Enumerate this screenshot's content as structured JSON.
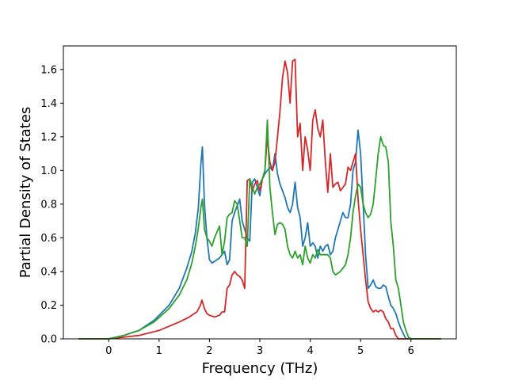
{
  "chart_data": {
    "type": "line",
    "title": "",
    "xlabel": "Frequency (THz)",
    "ylabel": "Partial Density of States",
    "xlim": [
      -0.9,
      6.9
    ],
    "ylim": [
      0.0,
      1.74
    ],
    "xticks": [
      0,
      1,
      2,
      3,
      4,
      5,
      6
    ],
    "yticks": [
      0.0,
      0.2,
      0.4,
      0.6,
      0.8,
      1.0,
      1.2,
      1.4,
      1.6
    ],
    "ytick_labels": [
      "0.0",
      "0.2",
      "0.4",
      "0.6",
      "0.8",
      "1.0",
      "1.2",
      "1.4",
      "1.6"
    ],
    "grid": false,
    "legend": "none",
    "series": [
      {
        "color": "#1f77b4",
        "x": [
          -0.6,
          0.0,
          0.3,
          0.6,
          0.9,
          1.2,
          1.4,
          1.55,
          1.65,
          1.72,
          1.78,
          1.83,
          1.86,
          1.9,
          1.95,
          2.0,
          2.05,
          2.1,
          2.2,
          2.3,
          2.35,
          2.4,
          2.45,
          2.5,
          2.55,
          2.6,
          2.65,
          2.7,
          2.75,
          2.8,
          2.85,
          2.9,
          3.0,
          3.05,
          3.1,
          3.15,
          3.2,
          3.25,
          3.3,
          3.35,
          3.4,
          3.45,
          3.5,
          3.55,
          3.6,
          3.65,
          3.7,
          3.75,
          3.8,
          3.85,
          3.9,
          3.95,
          4.0,
          4.05,
          4.1,
          4.15,
          4.2,
          4.25,
          4.3,
          4.35,
          4.4,
          4.45,
          4.5,
          4.55,
          4.6,
          4.65,
          4.7,
          4.75,
          4.8,
          4.85,
          4.9,
          4.95,
          5.0,
          5.05,
          5.1,
          5.15,
          5.2,
          5.25,
          5.3,
          5.35,
          5.4,
          5.45,
          5.5,
          5.55,
          5.6,
          5.65,
          5.7,
          5.75,
          5.8,
          5.85,
          5.9,
          5.95,
          6.0,
          6.6
        ],
        "y": [
          0.0,
          0.0,
          0.02,
          0.05,
          0.11,
          0.2,
          0.3,
          0.42,
          0.52,
          0.63,
          0.78,
          1.04,
          1.14,
          0.8,
          0.6,
          0.47,
          0.45,
          0.46,
          0.48,
          0.52,
          0.44,
          0.47,
          0.7,
          0.75,
          0.79,
          0.83,
          0.7,
          0.65,
          0.6,
          0.58,
          0.93,
          0.95,
          0.85,
          0.95,
          0.98,
          1.0,
          1.02,
          1.0,
          1.1,
          0.98,
          0.92,
          0.88,
          0.84,
          0.78,
          0.75,
          0.8,
          0.93,
          0.78,
          0.72,
          0.55,
          0.6,
          0.69,
          0.55,
          0.57,
          0.55,
          0.48,
          0.55,
          0.52,
          0.55,
          0.56,
          0.5,
          0.52,
          0.6,
          0.65,
          0.7,
          0.75,
          0.72,
          0.72,
          0.8,
          1.0,
          1.05,
          1.24,
          1.1,
          0.8,
          0.5,
          0.3,
          0.32,
          0.35,
          0.31,
          0.3,
          0.3,
          0.32,
          0.31,
          0.25,
          0.2,
          0.18,
          0.15,
          0.1,
          0.06,
          0.03,
          0.0,
          0.0,
          0.0,
          0.0
        ]
      },
      {
        "color": "#d62728",
        "x": [
          -0.6,
          0.0,
          0.3,
          0.6,
          1.0,
          1.4,
          1.6,
          1.75,
          1.82,
          1.85,
          1.9,
          1.95,
          2.0,
          2.1,
          2.2,
          2.25,
          2.3,
          2.35,
          2.4,
          2.45,
          2.5,
          2.55,
          2.6,
          2.65,
          2.7,
          2.75,
          2.8,
          2.85,
          2.9,
          2.95,
          3.0,
          3.05,
          3.1,
          3.15,
          3.2,
          3.25,
          3.3,
          3.35,
          3.4,
          3.45,
          3.5,
          3.55,
          3.6,
          3.65,
          3.7,
          3.75,
          3.8,
          3.85,
          3.9,
          3.95,
          4.0,
          4.05,
          4.1,
          4.15,
          4.2,
          4.25,
          4.3,
          4.35,
          4.4,
          4.45,
          4.5,
          4.55,
          4.6,
          4.65,
          4.7,
          4.75,
          4.8,
          4.85,
          4.9,
          4.95,
          5.0,
          5.05,
          5.1,
          5.15,
          5.2,
          5.25,
          5.3,
          5.35,
          5.4,
          5.45,
          5.5,
          5.55,
          5.6,
          5.65,
          5.7,
          5.75,
          5.8,
          5.85,
          5.9,
          5.95,
          6.0,
          6.6
        ],
        "y": [
          0.0,
          0.0,
          0.01,
          0.02,
          0.05,
          0.1,
          0.13,
          0.16,
          0.2,
          0.23,
          0.18,
          0.15,
          0.14,
          0.13,
          0.14,
          0.16,
          0.16,
          0.3,
          0.32,
          0.38,
          0.4,
          0.38,
          0.37,
          0.35,
          0.3,
          0.94,
          0.95,
          0.88,
          0.92,
          0.94,
          0.88,
          0.95,
          1.0,
          1.2,
          1.05,
          1.0,
          1.05,
          1.2,
          1.35,
          1.55,
          1.65,
          1.58,
          1.4,
          1.65,
          1.66,
          1.2,
          1.28,
          1.0,
          1.2,
          1.12,
          1.0,
          1.3,
          1.36,
          1.25,
          1.2,
          1.3,
          1.05,
          0.87,
          1.1,
          0.9,
          0.92,
          0.93,
          0.88,
          0.9,
          0.92,
          1.02,
          1.0,
          1.05,
          1.1,
          0.83,
          0.65,
          0.5,
          0.35,
          0.22,
          0.18,
          0.16,
          0.17,
          0.16,
          0.17,
          0.16,
          0.12,
          0.1,
          0.06,
          0.06,
          0.02,
          0.0,
          0.0,
          0.0,
          0.0,
          0.0,
          0.0,
          0.0
        ]
      },
      {
        "color": "#2ca02c",
        "x": [
          -0.6,
          0.0,
          0.3,
          0.6,
          0.9,
          1.2,
          1.4,
          1.55,
          1.65,
          1.72,
          1.78,
          1.83,
          1.86,
          1.9,
          1.95,
          2.0,
          2.05,
          2.1,
          2.2,
          2.25,
          2.3,
          2.35,
          2.4,
          2.45,
          2.5,
          2.55,
          2.6,
          2.65,
          2.7,
          2.75,
          2.8,
          2.85,
          2.9,
          2.95,
          3.0,
          3.05,
          3.1,
          3.15,
          3.2,
          3.25,
          3.3,
          3.35,
          3.4,
          3.45,
          3.5,
          3.55,
          3.6,
          3.65,
          3.7,
          3.75,
          3.8,
          3.85,
          3.9,
          3.95,
          4.0,
          4.05,
          4.1,
          4.15,
          4.2,
          4.25,
          4.3,
          4.35,
          4.4,
          4.45,
          4.5,
          4.55,
          4.6,
          4.65,
          4.7,
          4.75,
          4.8,
          4.85,
          4.9,
          4.95,
          5.0,
          5.05,
          5.1,
          5.15,
          5.2,
          5.25,
          5.3,
          5.35,
          5.4,
          5.45,
          5.5,
          5.55,
          5.6,
          5.65,
          5.7,
          5.75,
          5.8,
          5.85,
          5.9,
          5.95,
          6.0,
          6.6
        ],
        "y": [
          0.0,
          0.0,
          0.02,
          0.05,
          0.1,
          0.18,
          0.26,
          0.35,
          0.45,
          0.55,
          0.66,
          0.78,
          0.83,
          0.65,
          0.6,
          0.58,
          0.55,
          0.6,
          0.67,
          0.5,
          0.58,
          0.72,
          0.74,
          0.75,
          0.82,
          0.8,
          0.7,
          0.6,
          0.6,
          0.55,
          0.95,
          0.9,
          0.86,
          0.9,
          0.92,
          0.95,
          1.0,
          1.3,
          0.9,
          0.75,
          0.62,
          0.68,
          0.69,
          0.68,
          0.65,
          0.55,
          0.5,
          0.48,
          0.52,
          0.48,
          0.5,
          0.44,
          0.55,
          0.48,
          0.45,
          0.5,
          0.48,
          0.53,
          0.5,
          0.5,
          0.5,
          0.5,
          0.48,
          0.4,
          0.38,
          0.39,
          0.4,
          0.42,
          0.44,
          0.5,
          0.6,
          0.75,
          0.85,
          0.92,
          0.9,
          0.8,
          0.75,
          0.72,
          0.74,
          0.8,
          0.95,
          1.1,
          1.2,
          1.15,
          1.14,
          1.05,
          0.7,
          0.55,
          0.35,
          0.3,
          0.2,
          0.1,
          0.05,
          0.01,
          0.0,
          0.0
        ]
      }
    ]
  }
}
